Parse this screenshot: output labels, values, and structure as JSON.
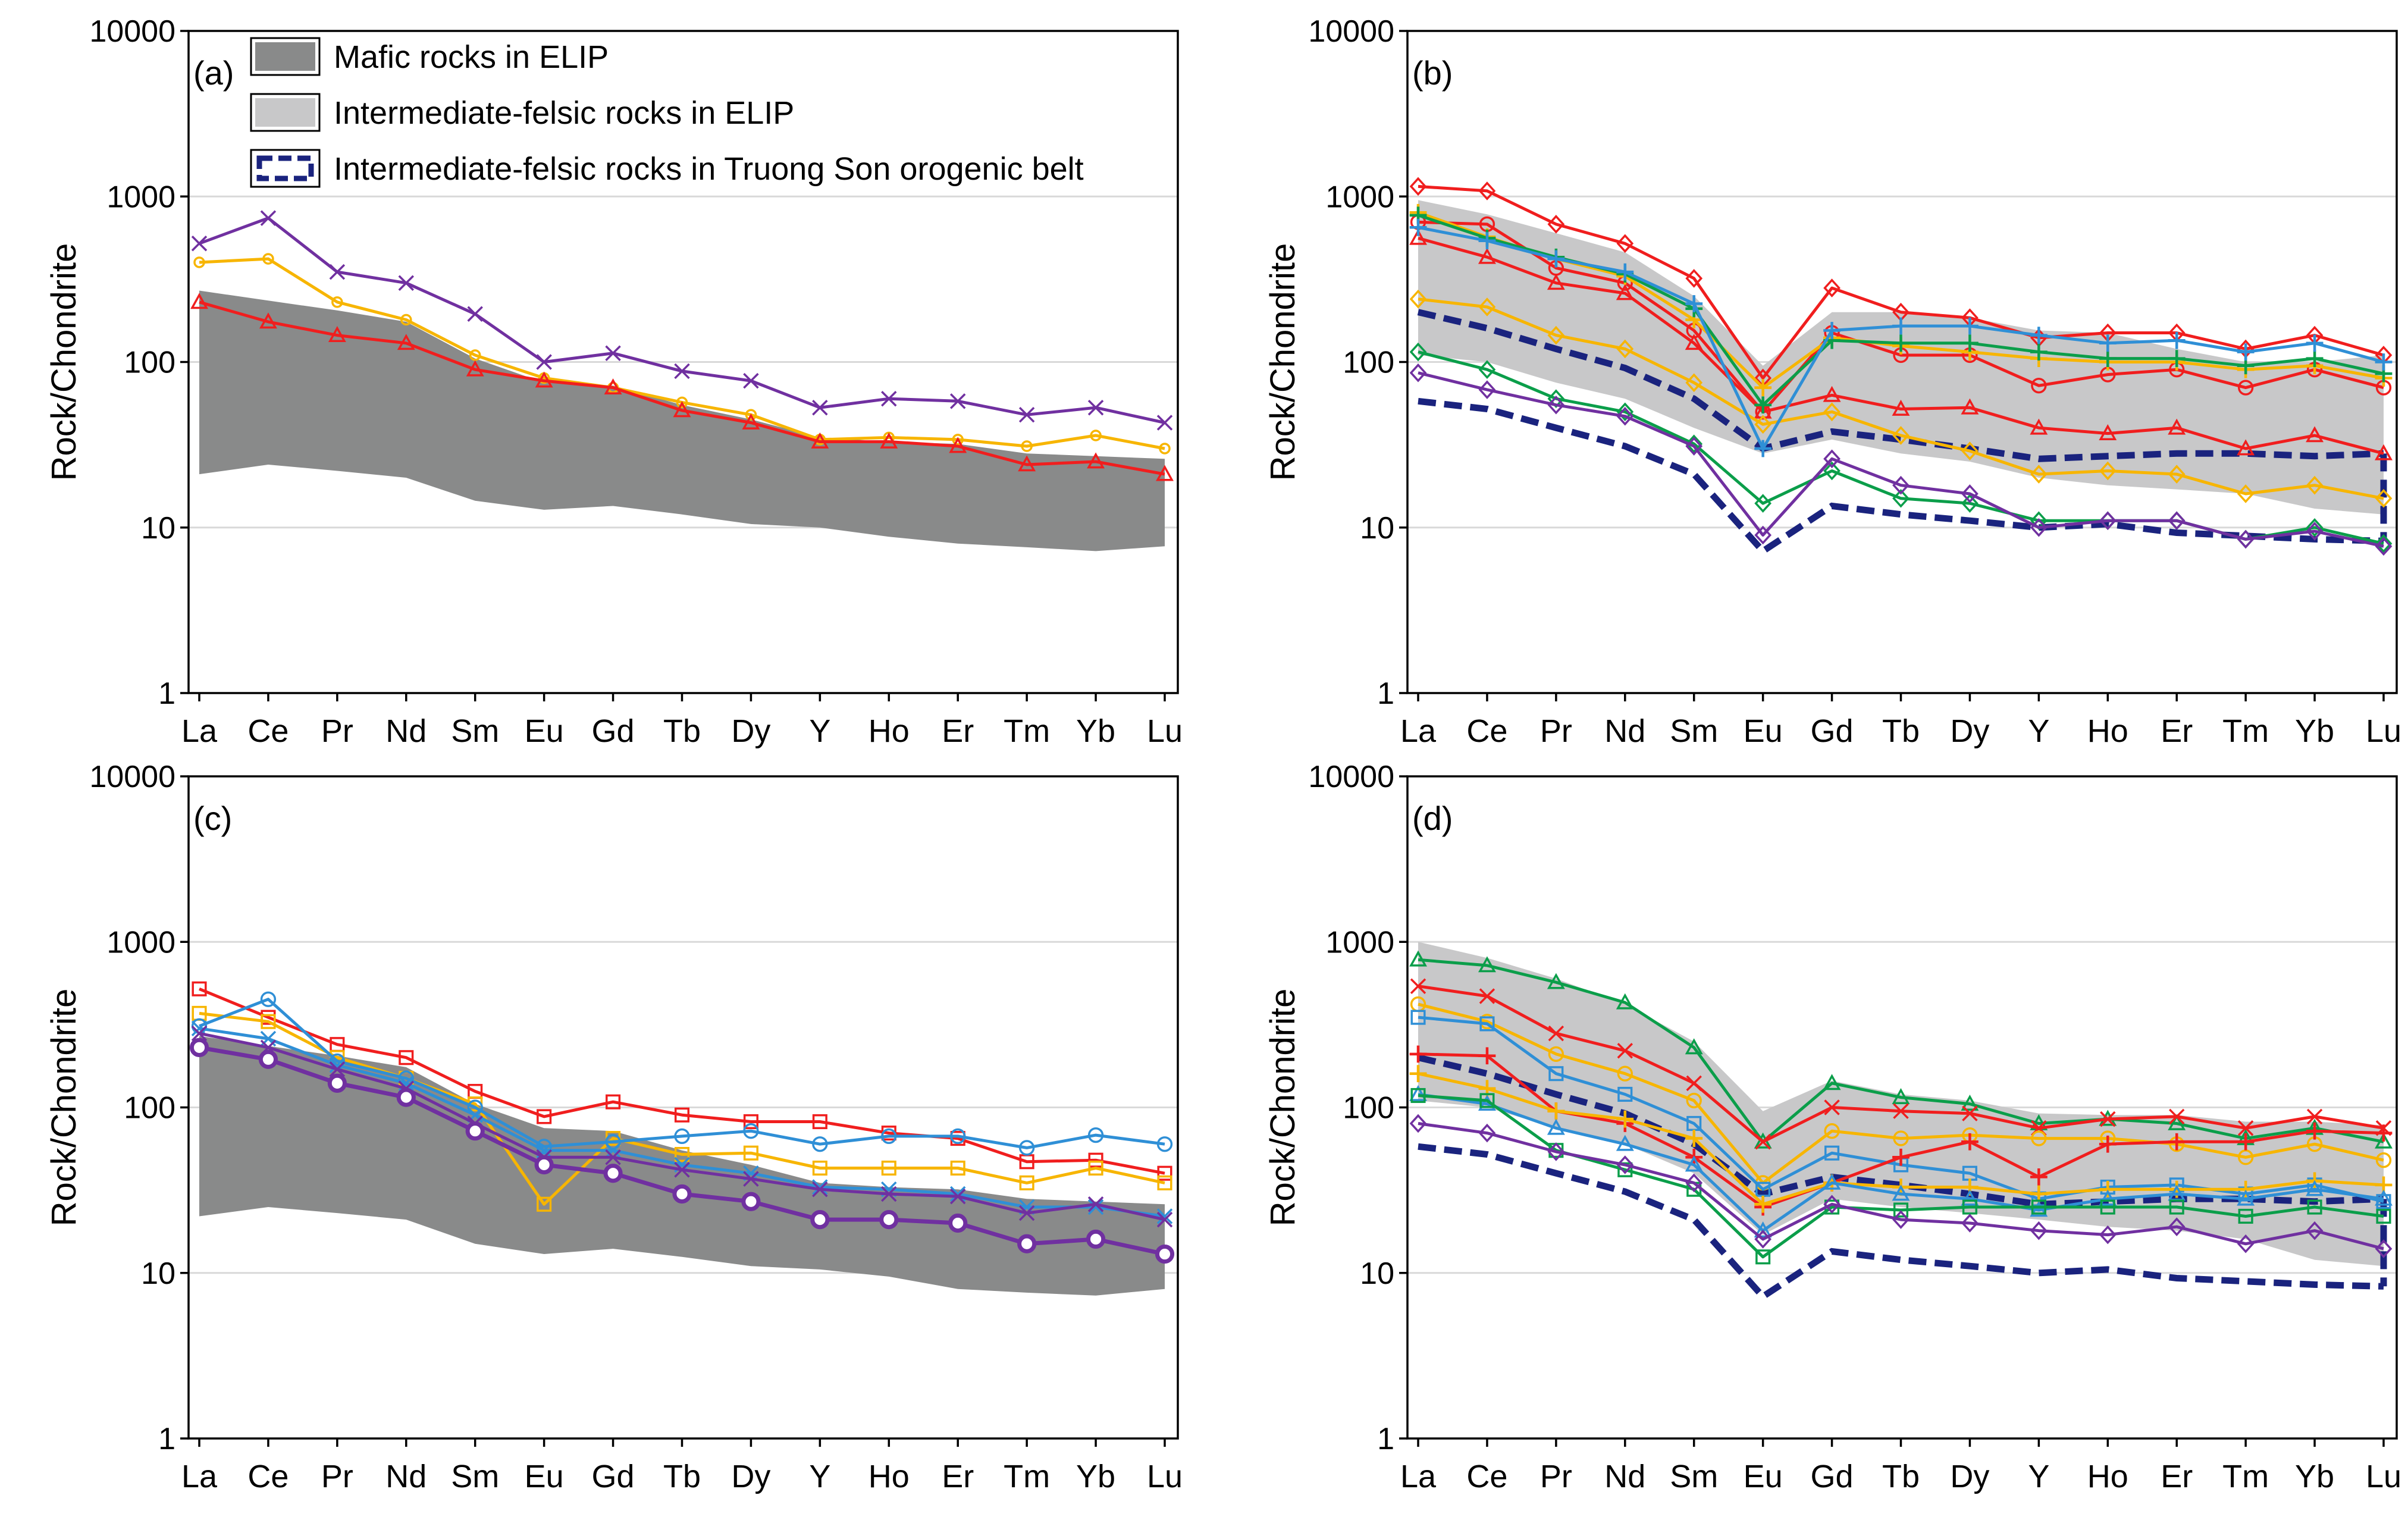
{
  "legend": {
    "items": [
      {
        "label": "Mafic rocks in ELIP",
        "style": "dark-fill"
      },
      {
        "label": "Intermediate-felsic rocks in ELIP",
        "style": "light-fill"
      },
      {
        "label": "Intermediate-felsic rocks in Truong Son orogenic belt",
        "style": "dashed-outline"
      }
    ]
  },
  "colors": {
    "mafic_fill": "#898a8a",
    "felsic_fill": "#c8c8c9",
    "truong_son": "#1a237e",
    "gridline": "#d9d9d9",
    "red": "#f01e1e",
    "orange": "#f7b500",
    "purple": "#7030a0",
    "green": "#0b9e4a",
    "blue": "#2f8fd6"
  },
  "chart_data": [
    {
      "type": "line",
      "panel": "(a)",
      "ylabel": "Rock/Chondrite",
      "yscale": "log",
      "ylim": [
        1,
        10000
      ],
      "yticks": [
        "1",
        "10",
        "100",
        "1000",
        "10000"
      ],
      "categories": [
        "La",
        "Ce",
        "Pr",
        "Nd",
        "Sm",
        "Eu",
        "Gd",
        "Tb",
        "Dy",
        "Y",
        "Ho",
        "Er",
        "Tm",
        "Yb",
        "Lu"
      ],
      "bands": [
        {
          "name": "Mafic rocks in ELIP",
          "style": "mafic",
          "upper": [
            270,
            235,
            205,
            175,
            105,
            75,
            72,
            55,
            45,
            35,
            33,
            32,
            28,
            27,
            26
          ],
          "lower": [
            21,
            24,
            22,
            20,
            14.5,
            12.8,
            13.5,
            12,
            10.5,
            10,
            8.8,
            8,
            7.6,
            7.2,
            7.7
          ]
        }
      ],
      "series": [
        {
          "name": "a-purple",
          "color": "purple",
          "marker": "x",
          "values": [
            520,
            740,
            350,
            300,
            195,
            100,
            113,
            88,
            77,
            53,
            60,
            58,
            48,
            53,
            43
          ]
        },
        {
          "name": "a-orange",
          "color": "orange",
          "marker": "+",
          "values": [
            400,
            420,
            230,
            180,
            110,
            80,
            70,
            57,
            48,
            34,
            35,
            34,
            31,
            36,
            30
          ]
        },
        {
          "name": "a-red",
          "color": "red",
          "marker": "triangle",
          "values": [
            230,
            175,
            145,
            130,
            90,
            77,
            70,
            51,
            43,
            33,
            33,
            31,
            24,
            25,
            21
          ]
        }
      ]
    },
    {
      "type": "line",
      "panel": "(b)",
      "ylabel": "Rock/Chondrite",
      "yscale": "log",
      "ylim": [
        1,
        10000
      ],
      "yticks": [
        "1",
        "10",
        "100",
        "1000",
        "10000"
      ],
      "categories": [
        "La",
        "Ce",
        "Pr",
        "Nd",
        "Sm",
        "Eu",
        "Gd",
        "Tb",
        "Dy",
        "Y",
        "Ho",
        "Er",
        "Tm",
        "Yb",
        "Lu"
      ],
      "bands": [
        {
          "name": "Intermediate-felsic rocks in ELIP",
          "style": "felsic",
          "upper": [
            950,
            780,
            600,
            460,
            250,
            95,
            200,
            200,
            185,
            155,
            150,
            120,
            100,
            100,
            110
          ],
          "lower": [
            110,
            100,
            75,
            60,
            40,
            28,
            34,
            28,
            25,
            20,
            18,
            17,
            16,
            13,
            12
          ]
        },
        {
          "name": "Intermediate-felsic rocks in Truong Son orogenic belt",
          "style": "truongson",
          "upper": [
            200,
            160,
            120,
            92,
            60,
            30,
            38,
            34,
            30,
            26,
            27,
            28,
            28,
            27,
            28
          ],
          "lower": [
            58,
            52,
            40,
            31,
            21,
            7.2,
            13.5,
            12,
            11,
            10,
            10.5,
            9.3,
            8.9,
            8.5,
            8.3
          ]
        }
      ],
      "series": [
        {
          "name": "b-red-1",
          "color": "red",
          "marker": "diamond",
          "values": [
            1150,
            1080,
            680,
            520,
            320,
            80,
            280,
            200,
            185,
            140,
            150,
            150,
            120,
            145,
            110
          ]
        },
        {
          "name": "b-red-2",
          "color": "red",
          "marker": "circle",
          "values": [
            700,
            680,
            370,
            300,
            155,
            50,
            150,
            110,
            110,
            72,
            84,
            90,
            70,
            90,
            70
          ]
        },
        {
          "name": "b-red-3",
          "color": "red",
          "marker": "triangle",
          "values": [
            560,
            430,
            300,
            260,
            130,
            50,
            63,
            52,
            53,
            40,
            37,
            40,
            30,
            36,
            28
          ]
        },
        {
          "name": "b-orange-1",
          "color": "orange",
          "marker": "cross",
          "values": [
            800,
            570,
            420,
            330,
            180,
            70,
            140,
            125,
            115,
            105,
            100,
            100,
            90,
            95,
            80
          ]
        },
        {
          "name": "b-orange-2",
          "color": "orange",
          "marker": "diamond",
          "values": [
            240,
            215,
            145,
            120,
            75,
            42,
            50,
            36,
            29,
            21,
            22,
            21,
            16,
            18,
            15
          ]
        },
        {
          "name": "b-green-1",
          "color": "green",
          "marker": "cross",
          "values": [
            770,
            560,
            430,
            340,
            210,
            55,
            135,
            130,
            130,
            115,
            105,
            105,
            95,
            105,
            85
          ]
        },
        {
          "name": "b-blue-1",
          "color": "blue",
          "marker": "cross",
          "values": [
            650,
            540,
            420,
            350,
            225,
            30,
            155,
            165,
            165,
            145,
            130,
            135,
            115,
            130,
            100
          ]
        },
        {
          "name": "b-green-2",
          "color": "green",
          "marker": "diamond",
          "values": [
            115,
            90,
            60,
            50,
            32,
            14,
            22,
            15,
            14,
            11,
            11,
            11,
            8.5,
            10,
            8
          ]
        },
        {
          "name": "b-purple-1",
          "color": "purple",
          "marker": "diamond",
          "values": [
            86,
            68,
            55,
            47,
            31,
            9,
            26,
            18,
            16,
            10,
            11,
            11,
            8.5,
            9.5,
            7.7
          ]
        }
      ]
    },
    {
      "type": "line",
      "panel": "(c)",
      "ylabel": "Rock/Chondrite",
      "yscale": "log",
      "ylim": [
        1,
        10000
      ],
      "yticks": [
        "1",
        "10",
        "100",
        "1000",
        "10000"
      ],
      "categories": [
        "La",
        "Ce",
        "Pr",
        "Nd",
        "Sm",
        "Eu",
        "Gd",
        "Tb",
        "Dy",
        "Y",
        "Ho",
        "Er",
        "Tm",
        "Yb",
        "Lu"
      ],
      "bands": [
        {
          "name": "Mafic rocks in ELIP",
          "style": "mafic",
          "upper": [
            270,
            235,
            205,
            175,
            105,
            75,
            72,
            55,
            45,
            35,
            33,
            32,
            28,
            27,
            26
          ],
          "lower": [
            22,
            25,
            23,
            21,
            15,
            13,
            14,
            12.5,
            11,
            10.5,
            9.5,
            8,
            7.6,
            7.3,
            8
          ]
        }
      ],
      "series": [
        {
          "name": "c-red",
          "color": "red",
          "marker": "square",
          "values": [
            520,
            350,
            240,
            200,
            125,
            88,
            108,
            90,
            82,
            82,
            70,
            65,
            47,
            48,
            40
          ]
        },
        {
          "name": "c-orange",
          "color": "orange",
          "marker": "square",
          "values": [
            370,
            330,
            200,
            150,
            105,
            26,
            65,
            52,
            53,
            43,
            43,
            43,
            35,
            43,
            35
          ]
        },
        {
          "name": "c-blue",
          "color": "blue",
          "marker": "circle",
          "values": [
            310,
            450,
            190,
            150,
            100,
            58,
            62,
            67,
            72,
            60,
            67,
            67,
            57,
            68,
            60
          ]
        },
        {
          "name": "c-blue-2",
          "color": "blue",
          "marker": "x",
          "values": [
            300,
            260,
            180,
            140,
            90,
            55,
            55,
            45,
            40,
            33,
            32,
            30,
            25,
            25,
            22
          ]
        },
        {
          "name": "c-purple-x",
          "color": "purple",
          "marker": "x",
          "values": [
            280,
            230,
            170,
            130,
            80,
            50,
            50,
            42,
            37,
            32,
            30,
            29,
            23,
            26,
            21
          ]
        },
        {
          "name": "c-purple",
          "color": "purple",
          "marker": "circle-bold",
          "values": [
            230,
            195,
            140,
            115,
            72,
            45,
            40,
            30,
            27,
            21,
            21,
            20,
            15,
            16,
            13
          ]
        }
      ]
    },
    {
      "type": "line",
      "panel": "(d)",
      "ylabel": "Rock/Chondrite",
      "yscale": "log",
      "ylim": [
        1,
        10000
      ],
      "yticks": [
        "1",
        "10",
        "100",
        "1000",
        "10000"
      ],
      "categories": [
        "La",
        "Ce",
        "Pr",
        "Nd",
        "Sm",
        "Eu",
        "Gd",
        "Tb",
        "Dy",
        "Y",
        "Ho",
        "Er",
        "Tm",
        "Yb",
        "Lu"
      ],
      "bands": [
        {
          "name": "Intermediate-felsic rocks in ELIP",
          "style": "felsic",
          "upper": [
            1000,
            800,
            600,
            420,
            250,
            95,
            145,
            120,
            110,
            92,
            90,
            90,
            82,
            82,
            78
          ],
          "lower": [
            110,
            100,
            75,
            60,
            40,
            17,
            28,
            25,
            23,
            21,
            19,
            18,
            16,
            12,
            11
          ]
        },
        {
          "name": "Intermediate-felsic rocks in Truong Son orogenic belt",
          "style": "truongson",
          "upper": [
            200,
            160,
            120,
            92,
            60,
            30,
            38,
            34,
            30,
            26,
            27,
            28,
            28,
            27,
            28
          ],
          "lower": [
            58,
            52,
            40,
            31,
            21,
            7.2,
            13.5,
            12,
            11,
            10,
            10.5,
            9.3,
            8.9,
            8.5,
            8.3
          ]
        }
      ],
      "series": [
        {
          "name": "d-green-tri",
          "color": "green",
          "marker": "triangle",
          "values": [
            780,
            720,
            570,
            430,
            230,
            62,
            140,
            115,
            105,
            80,
            85,
            80,
            65,
            75,
            62
          ]
        },
        {
          "name": "d-red-x",
          "color": "red",
          "marker": "x",
          "values": [
            540,
            470,
            280,
            220,
            140,
            62,
            100,
            95,
            92,
            75,
            85,
            88,
            75,
            88,
            75
          ]
        },
        {
          "name": "d-orange-1",
          "color": "orange",
          "marker": "circle",
          "values": [
            420,
            330,
            210,
            160,
            110,
            35,
            72,
            65,
            68,
            65,
            65,
            60,
            50,
            60,
            48
          ]
        },
        {
          "name": "d-blue-sq",
          "color": "blue",
          "marker": "square",
          "values": [
            350,
            320,
            160,
            120,
            80,
            32,
            53,
            45,
            40,
            28,
            33,
            34,
            30,
            34,
            27
          ]
        },
        {
          "name": "d-red-plus",
          "color": "red",
          "marker": "plus",
          "values": [
            210,
            205,
            95,
            80,
            50,
            25,
            35,
            50,
            62,
            38,
            60,
            62,
            62,
            72,
            70
          ]
        },
        {
          "name": "d-orange-2",
          "color": "orange",
          "marker": "plus",
          "values": [
            160,
            130,
            95,
            85,
            65,
            26,
            35,
            33,
            33,
            30,
            32,
            32,
            32,
            36,
            34
          ]
        },
        {
          "name": "d-blue-tri",
          "color": "blue",
          "marker": "triangle",
          "values": [
            120,
            105,
            75,
            60,
            45,
            18,
            35,
            30,
            28,
            24,
            28,
            30,
            28,
            32,
            28
          ]
        },
        {
          "name": "d-green-sq",
          "color": "green",
          "marker": "square",
          "values": [
            118,
            110,
            55,
            42,
            32,
            12.5,
            25,
            24,
            25,
            25,
            25,
            25,
            22,
            25,
            22
          ]
        },
        {
          "name": "d-purple",
          "color": "purple",
          "marker": "diamond",
          "values": [
            80,
            70,
            54,
            45,
            35,
            16,
            26,
            21,
            20,
            18,
            17,
            19,
            15,
            18,
            14
          ]
        }
      ]
    }
  ]
}
